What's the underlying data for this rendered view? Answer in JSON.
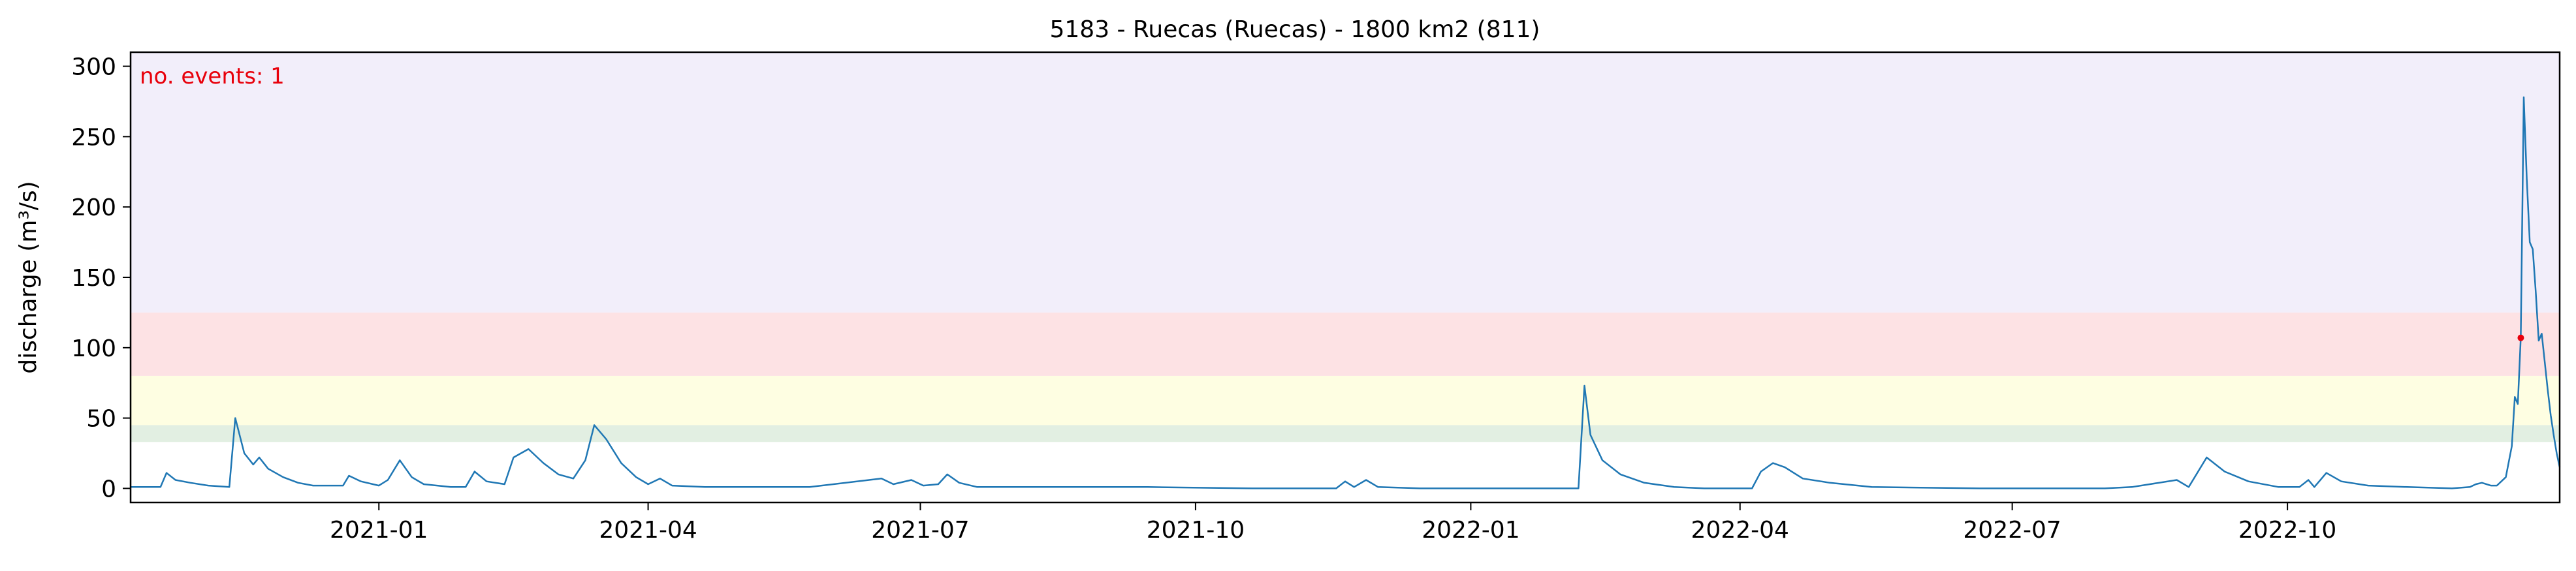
{
  "chart_data": {
    "type": "line",
    "title": "5183 - Ruecas (Ruecas) - 1800 km2 (811)",
    "ylabel": "discharge (m³/s)",
    "xlabel": "",
    "annotation": "no. events: 1",
    "ylim": [
      -10,
      310
    ],
    "xlim": [
      "2020-10-10",
      "2022-12-31"
    ],
    "grid": false,
    "y_ticks": [
      0,
      50,
      100,
      150,
      200,
      250,
      300
    ],
    "x_ticks": [
      "2021-01",
      "2021-04",
      "2021-07",
      "2021-10",
      "2022-01",
      "2022-04",
      "2022-07",
      "2022-10"
    ],
    "threshold_bands": [
      {
        "from": 33,
        "to": 45,
        "color": "#e2efe2"
      },
      {
        "from": 45,
        "to": 80,
        "color": "#fefee2"
      },
      {
        "from": 80,
        "to": 125,
        "color": "#fde2e4"
      },
      {
        "from": 125,
        "to": 310,
        "color": "#f2eefa"
      }
    ],
    "series": [
      {
        "color": "#1f77b4",
        "points": [
          [
            "2020-10-10",
            1
          ],
          [
            "2020-10-20",
            1
          ],
          [
            "2020-10-22",
            11
          ],
          [
            "2020-10-25",
            6
          ],
          [
            "2020-10-30",
            4
          ],
          [
            "2020-11-05",
            2
          ],
          [
            "2020-11-12",
            1
          ],
          [
            "2020-11-14",
            50
          ],
          [
            "2020-11-17",
            25
          ],
          [
            "2020-11-20",
            17
          ],
          [
            "2020-11-22",
            22
          ],
          [
            "2020-11-25",
            14
          ],
          [
            "2020-11-30",
            8
          ],
          [
            "2020-12-05",
            4
          ],
          [
            "2020-12-10",
            2
          ],
          [
            "2020-12-20",
            2
          ],
          [
            "2020-12-22",
            9
          ],
          [
            "2020-12-26",
            5
          ],
          [
            "2021-01-01",
            2
          ],
          [
            "2021-01-04",
            6
          ],
          [
            "2021-01-08",
            20
          ],
          [
            "2021-01-12",
            8
          ],
          [
            "2021-01-16",
            3
          ],
          [
            "2021-01-25",
            1
          ],
          [
            "2021-01-30",
            1
          ],
          [
            "2021-02-02",
            12
          ],
          [
            "2021-02-06",
            5
          ],
          [
            "2021-02-12",
            3
          ],
          [
            "2021-02-15",
            22
          ],
          [
            "2021-02-20",
            28
          ],
          [
            "2021-02-25",
            18
          ],
          [
            "2021-03-02",
            10
          ],
          [
            "2021-03-07",
            7
          ],
          [
            "2021-03-11",
            20
          ],
          [
            "2021-03-14",
            45
          ],
          [
            "2021-03-18",
            35
          ],
          [
            "2021-03-23",
            18
          ],
          [
            "2021-03-28",
            8
          ],
          [
            "2021-04-01",
            3
          ],
          [
            "2021-04-05",
            7
          ],
          [
            "2021-04-09",
            2
          ],
          [
            "2021-04-20",
            1
          ],
          [
            "2021-05-10",
            1
          ],
          [
            "2021-05-25",
            1
          ],
          [
            "2021-06-18",
            7
          ],
          [
            "2021-06-22",
            3
          ],
          [
            "2021-06-28",
            6
          ],
          [
            "2021-07-02",
            2
          ],
          [
            "2021-07-07",
            3
          ],
          [
            "2021-07-10",
            10
          ],
          [
            "2021-07-14",
            4
          ],
          [
            "2021-07-20",
            1
          ],
          [
            "2021-08-15",
            1
          ],
          [
            "2021-09-15",
            1
          ],
          [
            "2021-10-20",
            0
          ],
          [
            "2021-11-10",
            0
          ],
          [
            "2021-11-17",
            0
          ],
          [
            "2021-11-20",
            5
          ],
          [
            "2021-11-23",
            1
          ],
          [
            "2021-11-27",
            6
          ],
          [
            "2021-12-01",
            1
          ],
          [
            "2021-12-15",
            0
          ],
          [
            "2022-01-15",
            0
          ],
          [
            "2022-02-06",
            0
          ],
          [
            "2022-02-08",
            73
          ],
          [
            "2022-02-10",
            38
          ],
          [
            "2022-02-14",
            20
          ],
          [
            "2022-02-20",
            10
          ],
          [
            "2022-02-28",
            4
          ],
          [
            "2022-03-10",
            1
          ],
          [
            "2022-03-20",
            0
          ],
          [
            "2022-04-05",
            0
          ],
          [
            "2022-04-08",
            12
          ],
          [
            "2022-04-12",
            18
          ],
          [
            "2022-04-16",
            15
          ],
          [
            "2022-04-22",
            7
          ],
          [
            "2022-05-01",
            4
          ],
          [
            "2022-05-15",
            1
          ],
          [
            "2022-06-20",
            0
          ],
          [
            "2022-08-01",
            0
          ],
          [
            "2022-08-10",
            1
          ],
          [
            "2022-08-25",
            6
          ],
          [
            "2022-08-29",
            1
          ],
          [
            "2022-09-04",
            22
          ],
          [
            "2022-09-10",
            12
          ],
          [
            "2022-09-18",
            5
          ],
          [
            "2022-09-28",
            1
          ],
          [
            "2022-10-05",
            1
          ],
          [
            "2022-10-08",
            6
          ],
          [
            "2022-10-10",
            1
          ],
          [
            "2022-10-14",
            11
          ],
          [
            "2022-10-19",
            5
          ],
          [
            "2022-10-28",
            2
          ],
          [
            "2022-11-10",
            1
          ],
          [
            "2022-11-25",
            0
          ],
          [
            "2022-12-01",
            1
          ],
          [
            "2022-12-03",
            3
          ],
          [
            "2022-12-05",
            4
          ],
          [
            "2022-12-08",
            2
          ],
          [
            "2022-12-10",
            2
          ],
          [
            "2022-12-13",
            8
          ],
          [
            "2022-12-15",
            30
          ],
          [
            "2022-12-16",
            65
          ],
          [
            "2022-12-17",
            60
          ],
          [
            "2022-12-18",
            107
          ],
          [
            "2022-12-19",
            278
          ],
          [
            "2022-12-20",
            220
          ],
          [
            "2022-12-21",
            175
          ],
          [
            "2022-12-22",
            170
          ],
          [
            "2022-12-23",
            140
          ],
          [
            "2022-12-24",
            105
          ],
          [
            "2022-12-25",
            110
          ],
          [
            "2022-12-26",
            90
          ],
          [
            "2022-12-27",
            70
          ],
          [
            "2022-12-28",
            52
          ],
          [
            "2022-12-29",
            38
          ],
          [
            "2022-12-30",
            25
          ],
          [
            "2022-12-31",
            15
          ]
        ]
      }
    ],
    "events": [
      {
        "date": "2022-12-18",
        "value": 107,
        "color": "#e8000b"
      }
    ]
  }
}
